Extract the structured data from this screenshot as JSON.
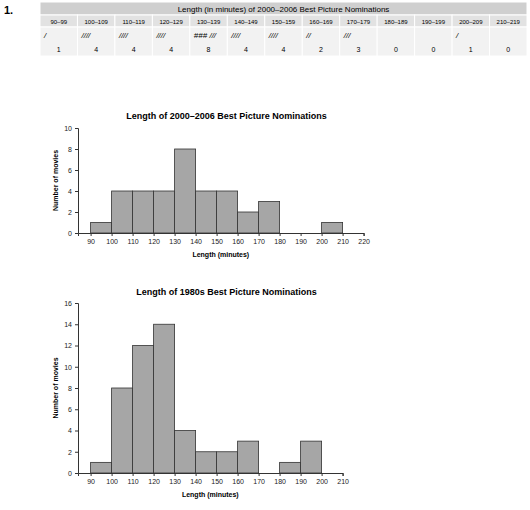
{
  "label": "1.",
  "table": {
    "title": "Length (in minutes) of 2000–2006 Best Picture Nominations",
    "columns": [
      "90–99",
      "100–109",
      "110–119",
      "120–129",
      "130–139",
      "140–149",
      "150–159",
      "160–169",
      "170–179",
      "180–189",
      "190–199",
      "200–209",
      "210–219"
    ],
    "tallies": [
      "/",
      "////",
      "////",
      "////",
      "### ///",
      "////",
      "////",
      "//",
      "///",
      null,
      null,
      "/",
      null
    ],
    "counts": [
      1,
      4,
      4,
      4,
      8,
      4,
      4,
      2,
      3,
      0,
      0,
      1,
      0
    ]
  },
  "chart_data": [
    {
      "type": "histogram",
      "title": "Length of 2000–2006 Best Picture Nominations",
      "x_label": "Length (minutes)",
      "y_label": "Number of movies",
      "bins": [
        90,
        100,
        110,
        120,
        130,
        140,
        150,
        160,
        170,
        180,
        190,
        200,
        210
      ],
      "values": [
        1,
        4,
        4,
        4,
        8,
        4,
        4,
        2,
        3,
        0,
        0,
        1
      ],
      "color": "#a6a6a6",
      "xlim": [
        84,
        220
      ],
      "xticks": [
        90,
        100,
        110,
        120,
        130,
        140,
        150,
        160,
        170,
        180,
        190,
        200,
        210,
        220
      ],
      "ylim": [
        0,
        10
      ],
      "yticks": [
        0,
        2,
        4,
        6,
        8,
        10
      ],
      "grid": false
    },
    {
      "type": "histogram",
      "title": "Length of 1980s Best Picture Nominations",
      "x_label": "Length (minutes)",
      "y_label": "Number of movies",
      "bins": [
        90,
        100,
        110,
        120,
        130,
        140,
        150,
        160,
        170,
        180,
        190,
        200
      ],
      "values": [
        1,
        8,
        12,
        14,
        4,
        2,
        2,
        3,
        0,
        1,
        3
      ],
      "color": "#a6a6a6",
      "xlim": [
        84,
        210
      ],
      "xticks": [
        90,
        100,
        110,
        120,
        130,
        140,
        150,
        160,
        170,
        180,
        190,
        200,
        210
      ],
      "ylim": [
        0,
        16
      ],
      "yticks": [
        0,
        2,
        4,
        6,
        8,
        10,
        12,
        14,
        16
      ],
      "grid": false
    }
  ]
}
